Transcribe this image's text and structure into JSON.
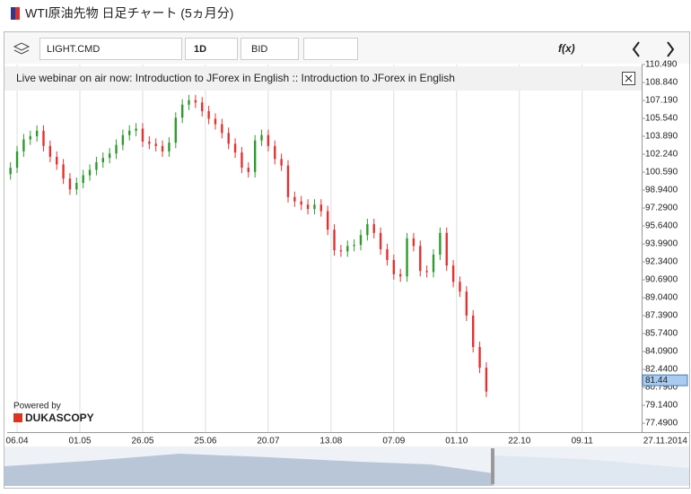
{
  "header": {
    "title": "WTI原油先物 日足チャート (5ヵ月分)"
  },
  "toolbar": {
    "instrument": "LIGHT.CMD",
    "period": "1D",
    "side": "BID",
    "function": "f(x)"
  },
  "banner": {
    "text": "Live webinar on air now: Introduction to JForex in English :: Introduction to JForex in English"
  },
  "branding": {
    "powered": "Powered by",
    "brand": "DUKASCOPY"
  },
  "chart_data": {
    "type": "candlestick",
    "grid": "x",
    "up_color": "#2e9a2e",
    "down_color": "#e53030",
    "last_price": 81.44,
    "ylim": [
      76.67,
      110.49
    ],
    "yticks": [
      {
        "value": 77.49,
        "label": "77.4900"
      },
      {
        "value": 79.14,
        "label": "79.1400"
      },
      {
        "value": 80.79,
        "label": "80.7900"
      },
      {
        "value": 82.44,
        "label": "82.4400"
      },
      {
        "value": 84.09,
        "label": "84.0900"
      },
      {
        "value": 85.74,
        "label": "85.7400"
      },
      {
        "value": 87.39,
        "label": "87.3900"
      },
      {
        "value": 89.04,
        "label": "89.0400"
      },
      {
        "value": 90.69,
        "label": "90.6900"
      },
      {
        "value": 92.34,
        "label": "92.3400"
      },
      {
        "value": 93.99,
        "label": "93.9900"
      },
      {
        "value": 95.64,
        "label": "95.6400"
      },
      {
        "value": 97.29,
        "label": "97.2900"
      },
      {
        "value": 98.94,
        "label": "98.9400"
      },
      {
        "value": 100.59,
        "label": "100.590"
      },
      {
        "value": 102.24,
        "label": "102.240"
      },
      {
        "value": 103.89,
        "label": "103.890"
      },
      {
        "value": 105.54,
        "label": "105.540"
      },
      {
        "value": 107.19,
        "label": "107.190"
      },
      {
        "value": 108.84,
        "label": "108.840"
      },
      {
        "value": 110.49,
        "label": "110.490"
      }
    ],
    "xlim": [
      -3,
      189
    ],
    "xticks": [
      {
        "value": 0,
        "label": "06.04"
      },
      {
        "value": 19,
        "label": "01.05"
      },
      {
        "value": 38,
        "label": "26.05"
      },
      {
        "value": 57,
        "label": "25.06"
      },
      {
        "value": 76,
        "label": "20.07"
      },
      {
        "value": 95,
        "label": "13.08"
      },
      {
        "value": 114,
        "label": "07.09"
      },
      {
        "value": 133,
        "label": "01.10"
      },
      {
        "value": 152,
        "label": "22.10"
      },
      {
        "value": 171,
        "label": "09.11"
      },
      {
        "value": 189,
        "label": "27.11.2014"
      }
    ],
    "x": [
      -2,
      0,
      2,
      4,
      6,
      8,
      10,
      12,
      14,
      16,
      18,
      20,
      22,
      24,
      26,
      28,
      30,
      32,
      34,
      36,
      38,
      40,
      42,
      44,
      46,
      48,
      50,
      52,
      54,
      56,
      58,
      60,
      62,
      64,
      66,
      68,
      70,
      72,
      74,
      76,
      78,
      80,
      82,
      84,
      86,
      88,
      90,
      92,
      94,
      96,
      98,
      100,
      102,
      104,
      106,
      108,
      110,
      112,
      114,
      116,
      118,
      120,
      122,
      124,
      126,
      128,
      130,
      132,
      134,
      136,
      138,
      140,
      142
    ],
    "open": [
      100.4,
      101.0,
      102.5,
      103.6,
      103.9,
      104.4,
      103.0,
      102.0,
      101.3,
      100.0,
      99.0,
      99.6,
      100.3,
      100.8,
      101.5,
      101.9,
      102.3,
      103.1,
      104.0,
      104.4,
      104.6,
      103.4,
      103.2,
      103.0,
      102.5,
      103.3,
      105.6,
      106.8,
      107.2,
      107.0,
      106.2,
      105.5,
      105.0,
      104.2,
      103.2,
      102.4,
      101.0,
      100.6,
      103.5,
      104.0,
      103.0,
      101.8,
      101.2,
      98.3,
      97.9,
      97.6,
      97.2,
      97.6,
      97.0,
      95.3,
      93.4,
      93.3,
      93.8,
      93.9,
      94.8,
      95.8,
      95.0,
      93.5,
      92.5,
      91.2,
      91.0,
      94.5,
      93.8,
      91.5,
      91.4,
      93.0,
      95.0,
      92.0,
      90.5,
      89.6,
      87.4,
      84.5,
      82.6
    ],
    "high": [
      101.5,
      103.0,
      104.1,
      104.4,
      104.9,
      104.9,
      103.5,
      102.5,
      101.8,
      100.5,
      100.1,
      100.8,
      101.3,
      102.0,
      102.4,
      102.8,
      103.6,
      104.5,
      104.9,
      105.1,
      105.1,
      103.9,
      103.7,
      103.5,
      103.8,
      106.1,
      107.3,
      107.7,
      107.7,
      107.5,
      106.7,
      106.0,
      105.5,
      104.7,
      103.7,
      102.9,
      101.5,
      104.0,
      104.5,
      104.5,
      103.5,
      102.3,
      101.7,
      98.8,
      98.4,
      98.1,
      98.1,
      98.1,
      97.5,
      95.8,
      93.9,
      94.3,
      94.4,
      95.3,
      96.3,
      96.3,
      95.5,
      94.0,
      93.0,
      91.7,
      95.0,
      95.0,
      94.3,
      92.0,
      93.5,
      95.5,
      95.5,
      92.5,
      91.0,
      90.1,
      87.9,
      85.0,
      83.1
    ],
    "low": [
      99.9,
      100.5,
      102.0,
      103.1,
      103.4,
      102.5,
      101.5,
      100.8,
      99.5,
      98.5,
      98.5,
      99.1,
      99.8,
      100.3,
      101.0,
      101.4,
      101.8,
      102.6,
      103.5,
      103.9,
      102.9,
      102.7,
      102.5,
      102.0,
      102.0,
      102.8,
      105.1,
      106.3,
      106.5,
      105.7,
      105.0,
      104.5,
      103.7,
      102.7,
      101.9,
      100.5,
      100.1,
      100.1,
      103.0,
      102.5,
      101.3,
      100.7,
      97.8,
      97.4,
      97.1,
      96.7,
      96.7,
      96.5,
      94.8,
      92.9,
      92.8,
      92.8,
      93.3,
      93.4,
      94.3,
      94.5,
      93.0,
      92.0,
      90.7,
      90.5,
      90.5,
      93.3,
      91.0,
      90.9,
      90.9,
      92.5,
      91.5,
      90.0,
      89.1,
      86.9,
      84.0,
      82.1,
      79.9
    ],
    "close": [
      101.0,
      102.5,
      103.6,
      103.9,
      104.4,
      103.0,
      102.0,
      101.3,
      100.0,
      99.0,
      99.6,
      100.3,
      100.8,
      101.5,
      101.9,
      102.3,
      103.1,
      104.0,
      104.4,
      104.6,
      103.4,
      103.2,
      103.0,
      102.5,
      103.3,
      105.6,
      106.8,
      107.2,
      107.0,
      106.2,
      105.5,
      105.0,
      104.2,
      103.2,
      102.4,
      101.0,
      100.6,
      103.5,
      104.0,
      103.0,
      101.8,
      101.2,
      98.3,
      97.9,
      97.6,
      97.2,
      97.6,
      97.0,
      95.3,
      93.4,
      93.3,
      93.8,
      93.9,
      94.8,
      95.8,
      95.0,
      93.5,
      92.5,
      91.2,
      91.0,
      94.5,
      93.8,
      91.5,
      91.4,
      93.0,
      95.0,
      92.0,
      90.5,
      89.6,
      87.4,
      84.5,
      82.6,
      80.4
    ]
  }
}
